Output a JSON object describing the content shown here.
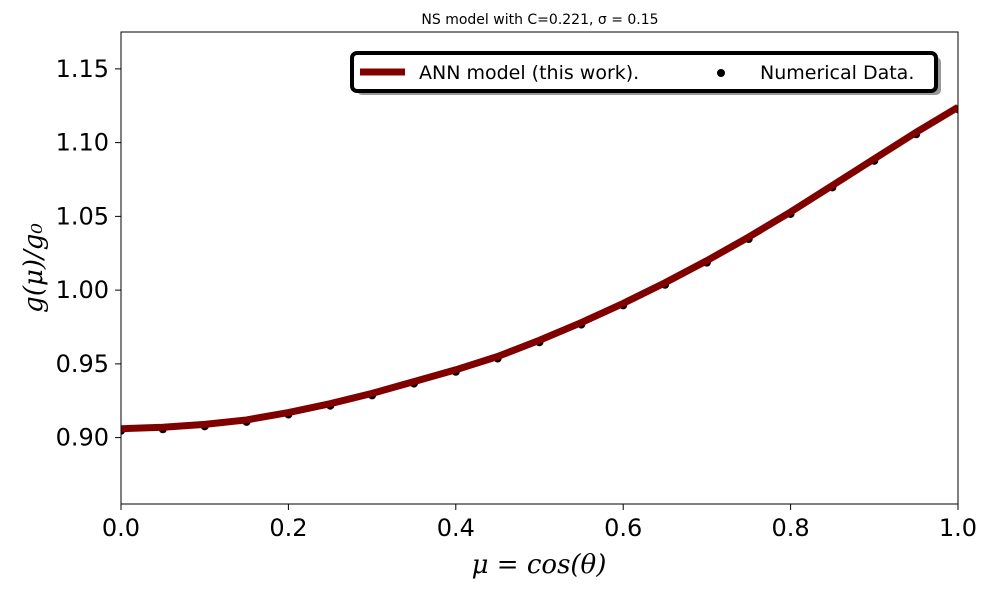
{
  "chart_data": {
    "type": "line",
    "title": "NS model with C=0.221, σ = 0.15",
    "xlabel": "μ = cos(θ)",
    "ylabel": "g(μ)/g₀",
    "xlim": [
      0.0,
      1.0
    ],
    "ylim": [
      0.855,
      1.175
    ],
    "xticks": [
      "0.0",
      "0.2",
      "0.4",
      "0.6",
      "0.8",
      "1.0"
    ],
    "yticks": [
      "0.90",
      "0.95",
      "1.00",
      "1.05",
      "1.10",
      "1.15"
    ],
    "grid": false,
    "legend_position": "top-right",
    "series": [
      {
        "name": "ANN model (this work).",
        "kind": "line",
        "color": "#800000",
        "x": [
          0.0,
          0.05,
          0.1,
          0.15,
          0.2,
          0.25,
          0.3,
          0.35,
          0.4,
          0.45,
          0.5,
          0.55,
          0.6,
          0.65,
          0.7,
          0.75,
          0.8,
          0.85,
          0.9,
          0.95,
          1.0
        ],
        "y": [
          0.906,
          0.907,
          0.909,
          0.912,
          0.917,
          0.923,
          0.93,
          0.938,
          0.946,
          0.955,
          0.966,
          0.978,
          0.991,
          1.005,
          1.02,
          1.036,
          1.053,
          1.071,
          1.089,
          1.107,
          1.124
        ]
      },
      {
        "name": "Numerical Data.",
        "kind": "scatter",
        "color": "#000000",
        "x": [
          0.0,
          0.05,
          0.1,
          0.15,
          0.2,
          0.25,
          0.3,
          0.35,
          0.4,
          0.45,
          0.5,
          0.55,
          0.6,
          0.65,
          0.7,
          0.75,
          0.8,
          0.85,
          0.9,
          0.95,
          1.0
        ],
        "y": [
          0.906,
          0.907,
          0.909,
          0.912,
          0.917,
          0.923,
          0.93,
          0.938,
          0.946,
          0.955,
          0.966,
          0.978,
          0.991,
          1.005,
          1.02,
          1.036,
          1.053,
          1.071,
          1.089,
          1.107,
          1.124
        ]
      }
    ]
  }
}
